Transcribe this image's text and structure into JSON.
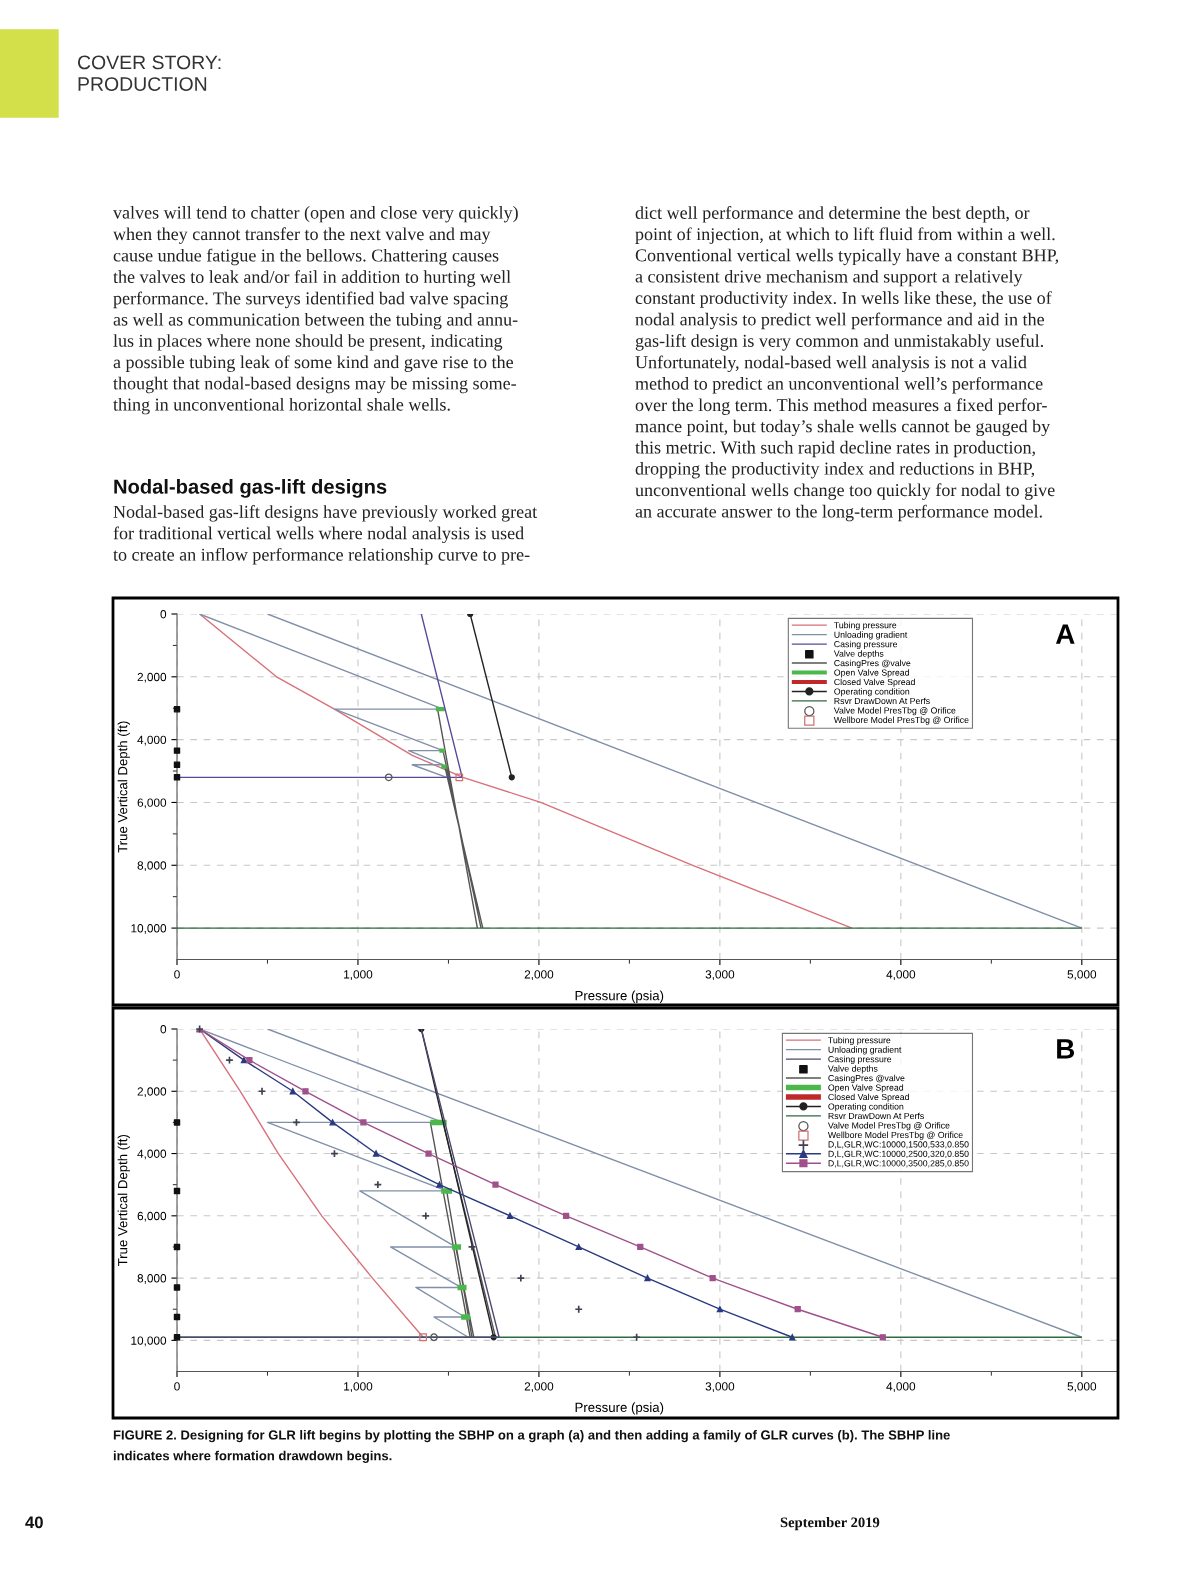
{
  "chart_data": [
    {
      "type": "line",
      "title": "A",
      "xlabel": "Pressure (psia)",
      "ylabel": "True Vertical Depth (ft)",
      "xlim": [
        0,
        5200
      ],
      "ylim": [
        11000,
        0
      ],
      "xticks": [
        0,
        {
          "value": 500,
          "label": null
        },
        {
          "value": 1000,
          "label": "1,000"
        },
        {
          "value": 1500,
          "label": null
        },
        {
          "value": 2000,
          "label": "2,000"
        },
        {
          "value": 2500,
          "label": null
        },
        {
          "value": 3000,
          "label": "3,000"
        },
        {
          "value": 3500,
          "label": null
        },
        {
          "value": 4000,
          "label": "4,000"
        },
        {
          "value": 4500,
          "label": null
        },
        {
          "value": 5000,
          "label": "5,000"
        }
      ],
      "yticks": [
        0,
        {
          "value": 1000,
          "label": null
        },
        {
          "value": 2000,
          "label": "2,000"
        },
        {
          "value": 3000,
          "label": null
        },
        {
          "value": 4000,
          "label": "4,000"
        },
        {
          "value": 5000,
          "label": null
        },
        {
          "value": 6000,
          "label": "6,000"
        },
        {
          "value": 7000,
          "label": null
        },
        {
          "value": 8000,
          "label": "8,000"
        },
        {
          "value": 9000,
          "label": null
        },
        {
          "value": 10000,
          "label": "10,000"
        }
      ],
      "grid": true,
      "legend": "top right",
      "series": [
        {
          "name": "Tubing pressure",
          "color": "#d9707a",
          "type": "line",
          "x": [
            125,
            550,
            870,
            1300,
            1580,
            2010,
            2850,
            3730
          ],
          "values": [
            0,
            2000,
            3030,
            4500,
            5200,
            6000,
            8000,
            10000
          ]
        },
        {
          "name": "Unloading gradient",
          "color": "#8090a8",
          "type": "line",
          "x": [
            125,
            1470,
            null,
            500,
            5000,
            null,
            1470,
            870,
            1470,
            1280,
            1470,
            1300,
            1490
          ],
          "values": [
            0,
            3030,
            null,
            0,
            10000,
            null,
            3030,
            3030,
            4350,
            4350,
            4800,
            4800,
            5200
          ]
        },
        {
          "name": "Casing pressure",
          "color": "#5a4a9a",
          "type": "line",
          "x": [
            1350,
            1576,
            0
          ],
          "values": [
            0,
            5200,
            5200
          ]
        },
        {
          "name": "Valve depths",
          "color": "#111111",
          "type": "scatter",
          "marker": "square",
          "x": [
            0,
            0,
            0,
            0
          ],
          "values": [
            3030,
            4350,
            4800,
            5200
          ]
        },
        {
          "name": "CasingPres @valve",
          "color": "#555555",
          "type": "line",
          "x": [
            1440,
            1660,
            null,
            1470,
            1680,
            null,
            1480,
            1690
          ],
          "values": [
            3030,
            10000,
            null,
            4350,
            10000,
            null,
            4860,
            10000
          ]
        },
        {
          "name": "Open Valve Spread",
          "color": "#4cb84c",
          "type": "line",
          "x": [
            1430,
            1480,
            null,
            1450,
            1480,
            null,
            1460,
            1490
          ],
          "values": [
            3030,
            3030,
            null,
            4350,
            4350,
            null,
            4860,
            4860
          ]
        },
        {
          "name": "Closed Valve Spread",
          "color": "#c0282c",
          "type": "line"
        },
        {
          "name": "Operating condition",
          "color": "#222222",
          "type": "line",
          "marker": "circle",
          "x": [
            1620,
            1850
          ],
          "values": [
            0,
            5200
          ]
        },
        {
          "name": "Rsvr DrawDown At Perfs",
          "color": "#2e6b3e",
          "type": "line",
          "x": [
            0,
            5000
          ],
          "values": [
            10000,
            10000
          ]
        },
        {
          "name": "Valve Model PresTbg @ Orifice",
          "color": "#555555",
          "type": "scatter",
          "marker": "circle",
          "x": [
            1170
          ],
          "values": [
            5200
          ]
        },
        {
          "name": "Wellbore Model PresTbg @ Orifice",
          "color": "#d07070",
          "type": "scatter",
          "marker": "square",
          "x": [
            1560
          ],
          "values": [
            5200
          ]
        }
      ],
      "annotations": [
        "COVER STORY:\nPRODUCTION",
        "valves will tend to chatter (open and close very quickly)\nwhen they cannot transfer to the next valve and may\ncause undue fatigue in the bellows. Chattering causes\nthe valves to leak and/or fail in addition to hurting well\nperformance. The surveys identified bad valve spacing\nas well as communication between the tubing and annu-\nlus in places where none should be present, indicating\na possible tubing leak of some kind and gave rise to the\nthought that nodal-based designs may be missing some-\nthing in unconventional horizontal shale wells.",
        "Nodal-based gas-lift designs",
        "Nodal-based gas-lift designs have previously worked great\nfor traditional vertical wells where nodal analysis is used\nto create an inflow performance relationship curve to pre-",
        "dict well performance and determine the best depth, or\npoint of injection, at which to lift fluid from within a well.\nConventional vertical wells typically have a constant BHP,\na consistent drive mechanism and support a relatively\nconstant productivity index. In wells like these, the use of\nnodal analysis to predict well performance and aid in the\ngas-lift design is very common and unmistakably useful.\nUnfortunately, nodal-based well analysis is not a valid\nmethod to predict an unconventional well’s performance\nover the long term. This method measures a fixed perfor-\nmance point, but today’s shale wells cannot be gauged by\nthis metric. With such rapid decline rates in production,\ndropping the productivity index and reductions in BHP,\nunconventional wells change too quickly for nodal to give\nan accurate answer to the long-term performance model."
      ]
    },
    {
      "type": "line",
      "title": "B",
      "xlabel": "Pressure (psia)",
      "ylabel": "True Vertical Depth (ft)",
      "xlim": [
        0,
        5200
      ],
      "ylim": [
        11000,
        0
      ],
      "xticks": [
        0,
        {
          "value": 500,
          "label": null
        },
        {
          "value": 1000,
          "label": "1,000"
        },
        {
          "value": 1500,
          "label": null
        },
        {
          "value": 2000,
          "label": "2,000"
        },
        {
          "value": 2500,
          "label": null
        },
        {
          "value": 3000,
          "label": "3,000"
        },
        {
          "value": 3500,
          "label": null
        },
        {
          "value": 4000,
          "label": "4,000"
        },
        {
          "value": 4500,
          "label": null
        },
        {
          "value": 5000,
          "label": "5,000"
        }
      ],
      "yticks": [
        0,
        {
          "value": 1000,
          "label": null
        },
        {
          "value": 2000,
          "label": "2,000"
        },
        {
          "value": 3000,
          "label": null
        },
        {
          "value": 4000,
          "label": "4,000"
        },
        {
          "value": 5000,
          "label": null
        },
        {
          "value": 6000,
          "label": "6,000"
        },
        {
          "value": 7000,
          "label": null
        },
        {
          "value": 8000,
          "label": "8,000"
        },
        {
          "value": 9000,
          "label": null
        },
        {
          "value": 10000,
          "label": "10,000"
        }
      ],
      "grid": true,
      "legend": "top right",
      "series": [
        {
          "name": "Tubing pressure",
          "color": "#d9707a",
          "type": "line",
          "x": [
            125,
            350,
            560,
            800,
            1080,
            1360
          ],
          "values": [
            0,
            2000,
            4000,
            6000,
            8000,
            9900
          ]
        },
        {
          "name": "Unloading gradient",
          "color": "#8090a8",
          "type": "line",
          "x": [
            125,
            1470,
            null,
            500,
            5000,
            null,
            1470,
            500,
            1490,
            1010,
            1540,
            1180,
            1570,
            1320,
            1590,
            1420,
            1610
          ],
          "values": [
            0,
            3000,
            null,
            0,
            9900,
            null,
            3000,
            3000,
            5200,
            5200,
            7000,
            7000,
            8300,
            8300,
            9250,
            9250,
            9900
          ]
        },
        {
          "name": "Casing pressure",
          "color": "#4a4a70",
          "type": "line",
          "x": [
            1350,
            1780,
            0
          ],
          "values": [
            0,
            9900,
            9900
          ]
        },
        {
          "name": "Valve depths",
          "color": "#111111",
          "type": "scatter",
          "marker": "square",
          "x": [
            0,
            0,
            0,
            0,
            0,
            0
          ],
          "values": [
            3000,
            5200,
            7000,
            8300,
            9250,
            9900
          ]
        },
        {
          "name": "CasingPres @valve",
          "color": "#555555",
          "type": "line",
          "x": [
            1400,
            1620,
            null,
            1490,
            1630,
            null,
            1540,
            1640,
            null,
            1470,
            1760
          ],
          "values": [
            3000,
            9900,
            null,
            5200,
            9900,
            null,
            7000,
            9900,
            null,
            3000,
            9900
          ]
        },
        {
          "name": "Open Valve Spread",
          "color": "#4cb84c",
          "type": "line",
          "x": [
            1400,
            1490,
            null,
            1460,
            1520,
            null,
            1520,
            1570,
            null,
            1550,
            1600,
            null,
            1570,
            1620
          ],
          "values": [
            3000,
            3000,
            null,
            5200,
            5200,
            null,
            7000,
            7000,
            null,
            8300,
            8300,
            null,
            9250,
            9250
          ]
        },
        {
          "name": "Closed Valve Spread",
          "color": "#c0282c",
          "type": "line"
        },
        {
          "name": "Operating condition",
          "color": "#222222",
          "type": "line",
          "marker": "circle",
          "x": [
            1350,
            1750
          ],
          "values": [
            0,
            9900
          ]
        },
        {
          "name": "Rsvr DrawDown At Perfs",
          "color": "#2e6b3e",
          "type": "line",
          "x": [
            0,
            5000
          ],
          "values": [
            9900,
            9900
          ]
        },
        {
          "name": "Valve Model PresTbg @ Orifice",
          "color": "#555555",
          "type": "scatter",
          "marker": "circle",
          "x": [
            1420
          ],
          "values": [
            9900
          ]
        },
        {
          "name": "Wellbore Model PresTbg @ Orifice",
          "color": "#d07070",
          "type": "scatter",
          "marker": "square",
          "x": [
            1360
          ],
          "values": [
            9900
          ]
        },
        {
          "name": "D,L,GLR,WC:10000,1500,533,0.850",
          "color": "#404050",
          "type": "scatter",
          "marker": "cross",
          "x": [
            125,
            290,
            470,
            660,
            870,
            1110,
            1375,
            1630,
            1900,
            2220,
            2540
          ],
          "values": [
            0,
            1000,
            2000,
            3000,
            4000,
            5000,
            6000,
            7000,
            8000,
            9000,
            9900
          ]
        },
        {
          "name": "D,L,GLR,WC:10000,2500,320,0.850",
          "color": "#2a3a80",
          "type": "line",
          "marker": "triangle",
          "x": [
            125,
            370,
            640,
            860,
            1100,
            1450,
            1840,
            2220,
            2600,
            3000,
            3400
          ],
          "values": [
            0,
            1000,
            2000,
            3000,
            4000,
            5000,
            6000,
            7000,
            8000,
            9000,
            9900
          ]
        },
        {
          "name": "D,L,GLR,WC:10000,3500,285,0.850",
          "color": "#a0508a",
          "type": "line",
          "marker": "square",
          "x": [
            125,
            400,
            710,
            1030,
            1390,
            1760,
            2150,
            2560,
            2960,
            3430,
            3900
          ],
          "values": [
            0,
            1000,
            2000,
            3000,
            4000,
            5000,
            6000,
            7000,
            8000,
            9000,
            9900
          ]
        }
      ],
      "annotations": [
        "FIGURE 2. Designing for GLR lift begins by plotting the SBHP on a graph (a) and then adding a family of GLR curves (b). The SBHP line\nindicates where formation drawdown begins.",
        "40",
        "September 2019"
      ]
    }
  ]
}
